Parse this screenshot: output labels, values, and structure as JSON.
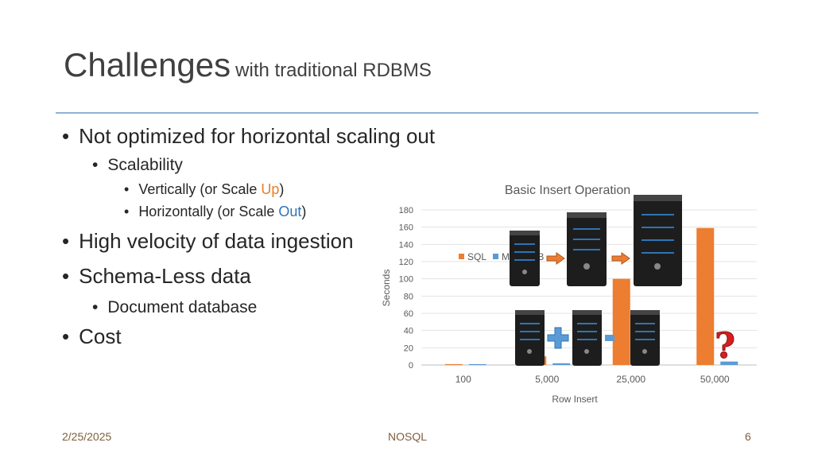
{
  "slide": {
    "title_main": "Challenges",
    "title_sub": "with traditional RDBMS",
    "bullets": {
      "b1": "Not optimized for horizontal scaling out",
      "b1_1": "Scalability",
      "b1_1_1_prefix": "Vertically (or Scale ",
      "b1_1_1_highlight": "Up",
      "b1_1_1_suffix": ")",
      "b1_1_2_prefix": "Horizontally (or Scale ",
      "b1_1_2_highlight": "Out",
      "b1_1_2_suffix": ")",
      "b2": "High velocity of data ingestion",
      "b3": "Schema-Less data",
      "b3_1": "Document database",
      "b4": "Cost"
    },
    "bullet_glyph": "•",
    "footer": {
      "date": "2/25/2025",
      "center": "NOSQL",
      "page": "6"
    },
    "colors": {
      "accent_orange": "#ED7D31",
      "accent_blue": "#5B9BD5",
      "rule": "#8FB3D3"
    },
    "icons": [
      "server-icon",
      "arrow-right-icon",
      "plus-icon",
      "question-mark-icon"
    ]
  },
  "chart_data": {
    "type": "bar",
    "title": "Basic Insert Operation",
    "xlabel": "Row Insert",
    "ylabel": "Seconds",
    "categories": [
      "100",
      "5,000",
      "25,000",
      "50,000"
    ],
    "ylim": [
      0,
      180
    ],
    "yticks": [
      0,
      20,
      40,
      60,
      80,
      100,
      120,
      140,
      160,
      180
    ],
    "grid": true,
    "legend_position": "top-left",
    "series": [
      {
        "name": "SQL",
        "color": "#ED7D31",
        "values": [
          1,
          10,
          100,
          159
        ]
      },
      {
        "name": "MongoDB",
        "color": "#5B9BD5",
        "values": [
          1,
          2,
          3,
          4
        ]
      }
    ]
  }
}
